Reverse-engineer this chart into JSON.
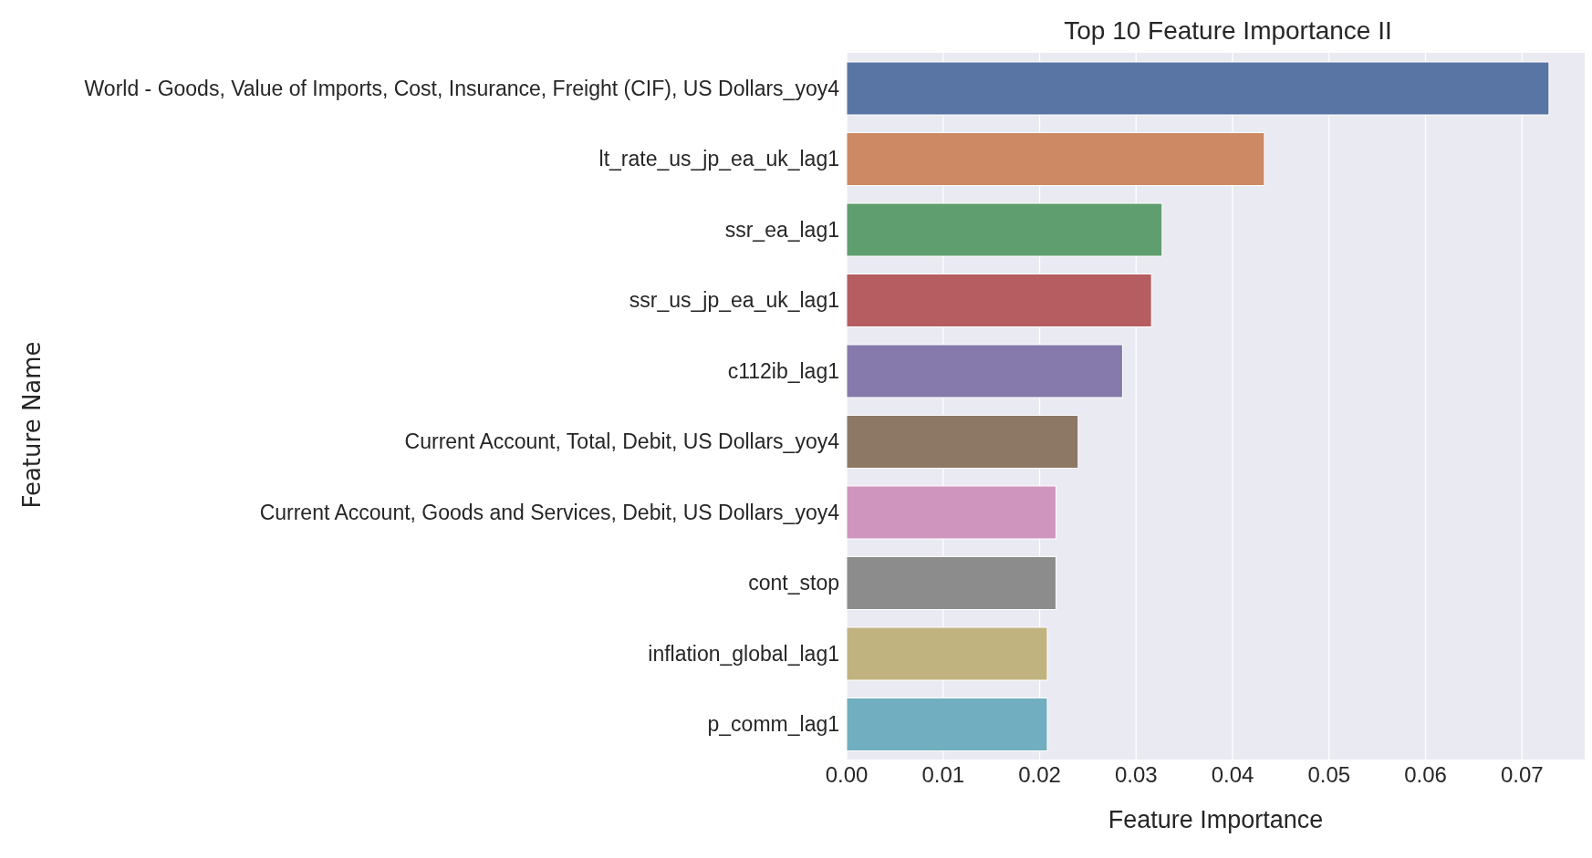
{
  "chart_data": {
    "type": "bar",
    "orientation": "horizontal",
    "title": "Top 10 Feature Importance II",
    "xlabel": "Feature Importance",
    "ylabel": "Feature Name",
    "categories": [
      "World - Goods, Value of Imports, Cost, Insurance, Freight (CIF), US Dollars_yoy4",
      "lt_rate_us_jp_ea_uk_lag1",
      "ssr_ea_lag1",
      "ssr_us_jp_ea_uk_lag1",
      "c112ib_lag1",
      "Current Account, Total, Debit, US Dollars_yoy4",
      "Current Account, Goods and Services, Debit, US Dollars_yoy4",
      "cont_stop",
      "inflation_global_lag1",
      "p_comm_lag1"
    ],
    "values": [
      0.0728,
      0.0433,
      0.0327,
      0.0316,
      0.0286,
      0.024,
      0.0217,
      0.0217,
      0.0208,
      0.0208
    ],
    "colors": [
      "#5975a4",
      "#cc8963",
      "#5f9e6e",
      "#b55d60",
      "#857aab",
      "#8d7866",
      "#d095bf",
      "#8c8c8c",
      "#c1b37f",
      "#71aec0"
    ],
    "xlim": [
      0,
      0.0765
    ],
    "xticks": [
      {
        "value": 0,
        "label": "0.00"
      },
      {
        "value": 0.01,
        "label": "0.01"
      },
      {
        "value": 0.02,
        "label": "0.02"
      },
      {
        "value": 0.03,
        "label": "0.03"
      },
      {
        "value": 0.04,
        "label": "0.04"
      },
      {
        "value": 0.05,
        "label": "0.05"
      },
      {
        "value": 0.06,
        "label": "0.06"
      },
      {
        "value": 0.07,
        "label": "0.07"
      }
    ],
    "grid": "x",
    "legend": false
  }
}
